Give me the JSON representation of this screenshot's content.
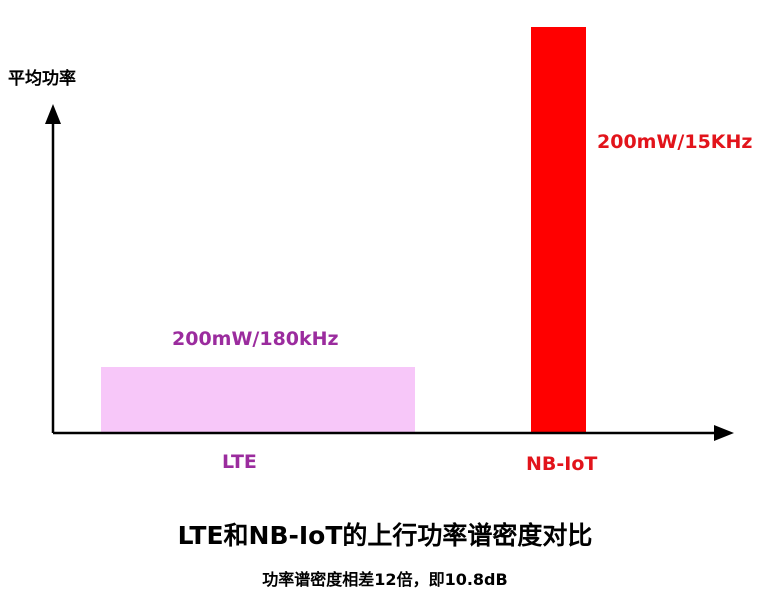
{
  "diagram": {
    "y_axis_label": "平均功率",
    "bars": [
      {
        "category": "LTE",
        "value_label": "200mW/180kHz",
        "color": "#f7c7f9",
        "label_color": "#9b2c9e"
      },
      {
        "category": "NB-IoT",
        "value_label": "200mW/15KHz",
        "color": "#ff0000",
        "label_color": "#e2141b"
      }
    ],
    "title": "LTE和NB-IoT的上行功率谱密度对比",
    "subtitle": "功率谱密度相差12倍，即10.8dB"
  }
}
